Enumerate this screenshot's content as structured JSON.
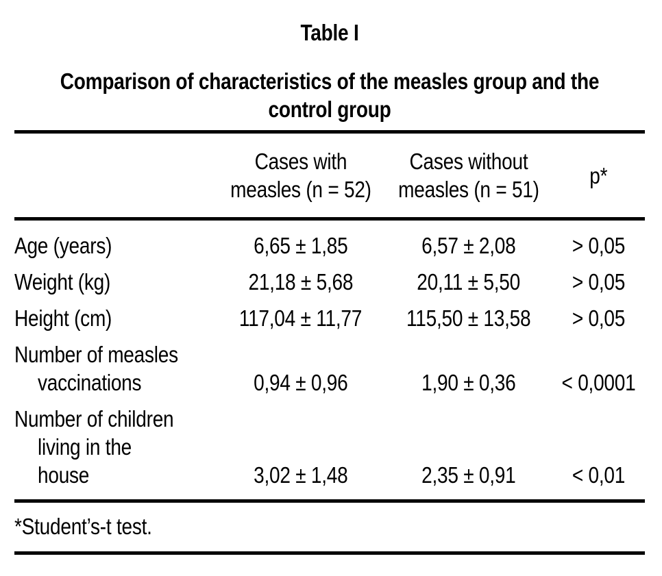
{
  "colors": {
    "background": "#ffffff",
    "text": "#000000",
    "rule": "#000000"
  },
  "heading": {
    "table_label": "Table I",
    "title": "Comparison of characteristics of the measles group and the control group"
  },
  "table": {
    "header": {
      "stub": "",
      "cases_with": [
        "Cases with",
        "measles (n = 52)"
      ],
      "cases_without": [
        "Cases without",
        "measles (n = 51)"
      ],
      "p": "p*"
    },
    "rows": [
      {
        "label": [
          "Age (years)"
        ],
        "cases_with": "6,65 ± 1,85",
        "cases_without": "6,57 ± 2,08",
        "p": "> 0,05"
      },
      {
        "label": [
          "Weight (kg)"
        ],
        "cases_with": "21,18 ± 5,68",
        "cases_without": "20,11 ± 5,50",
        "p": "> 0,05"
      },
      {
        "label": [
          "Height (cm)"
        ],
        "cases_with": "117,04 ± 11,77",
        "cases_without": "115,50 ± 13,58",
        "p": "> 0,05"
      },
      {
        "label": [
          "Number of measles",
          "vaccinations"
        ],
        "cases_with": "0,94 ± 0,96",
        "cases_without": "1,90 ± 0,36",
        "p": "< 0,0001"
      },
      {
        "label": [
          "Number of children",
          "living in the house"
        ],
        "cases_with": "3,02 ± 1,48",
        "cases_without": "2,35 ± 0,91",
        "p": "< 0,01"
      }
    ],
    "footnote": "*Student’s-t test."
  }
}
